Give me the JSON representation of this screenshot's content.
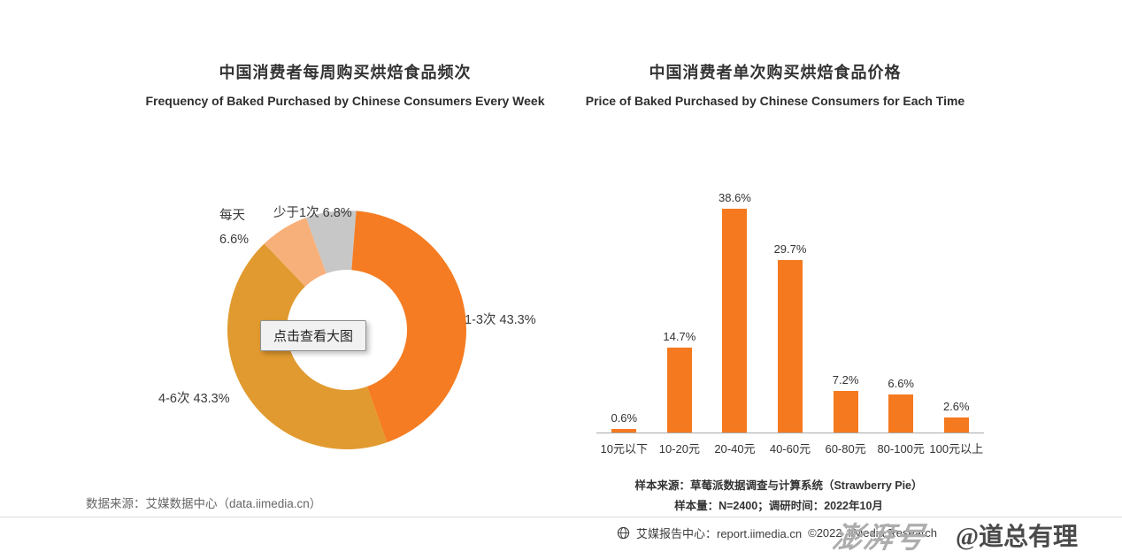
{
  "page": {
    "background": "#ffffff"
  },
  "left_chart": {
    "title_cn": "中国消费者每周购买烘焙食品频次",
    "title_en": "Frequency of Baked Purchased by Chinese Consumers Every Week",
    "tooltip": "点击查看大图",
    "source": "数据来源：艾媒数据中心（data.iimedia.cn）"
  },
  "right_chart": {
    "title_cn": "中国消费者单次购买烘焙食品价格",
    "title_en": "Price of Baked Purchased by Chinese Consumers for Each Time",
    "note1": "样本来源：草莓派数据调查与计算系统（Strawberry Pie）",
    "note2": "样本量：N=2400；调研时间：2022年10月"
  },
  "footer": {
    "globe_icon": "globe",
    "report_center": "艾媒报告中心：report.iimedia.cn",
    "copyright": "©2022",
    "brand": "iiMedia Research",
    "watermark_logo": "澎湃号",
    "watermark_author": "@道总有理"
  },
  "colors": {
    "orange": "#f57c22",
    "amber": "#e19a2f",
    "peach": "#f8b07a",
    "gray": "#c7c7c7",
    "bar_orange": "#f5791f"
  },
  "chart_data": [
    {
      "type": "pie",
      "donut": true,
      "title": "中国消费者每周购买烘焙食品频次",
      "subtitle": "Frequency of Baked Purchased by Chinese Consumers Every Week",
      "start_angle_deg_from_top": -20,
      "segments": [
        {
          "label": "少于1次",
          "pct": "6.8%",
          "value": 6.8,
          "color": "#c7c7c7"
        },
        {
          "label": "1-3次",
          "pct": "43.3%",
          "value": 43.3,
          "color": "#f57c22"
        },
        {
          "label": "4-6次",
          "pct": "43.3%",
          "value": 43.3,
          "color": "#e19a2f"
        },
        {
          "label": "每天",
          "pct": "6.6%",
          "value": 6.6,
          "color": "#f8b07a"
        }
      ]
    },
    {
      "type": "bar",
      "title": "中国消费者单次购买烘焙食品价格",
      "subtitle": "Price of Baked Purchased by Chinese Consumers for Each Time",
      "categories": [
        "10元以下",
        "10-20元",
        "20-40元",
        "40-60元",
        "60-80元",
        "80-100元",
        "100元以上"
      ],
      "values": [
        0.6,
        14.7,
        38.6,
        29.7,
        7.2,
        6.6,
        2.6
      ],
      "value_labels": [
        "0.6%",
        "14.7%",
        "38.6%",
        "29.7%",
        "7.2%",
        "6.6%",
        "2.6%"
      ],
      "bar_color": "#f5791f",
      "ylim": [
        0,
        40
      ],
      "grid": false,
      "legend": "none"
    }
  ]
}
